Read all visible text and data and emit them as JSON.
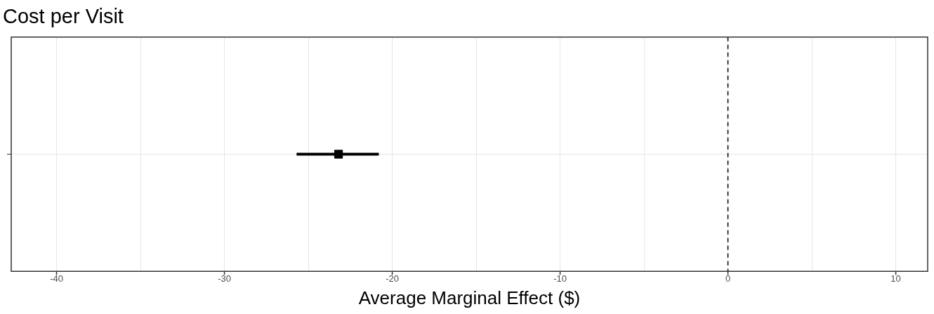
{
  "chart_data": {
    "type": "scatter",
    "title": "Cost per Visit",
    "xlabel": "Average Marginal Effect ($)",
    "orientation": "horizontal",
    "categories": [
      null
    ],
    "series": [
      {
        "color": "#000000",
        "values": [
          -23.2
        ],
        "errors": [
          [
            -25.7,
            -20.8
          ]
        ]
      }
    ],
    "xlim": [
      -42.7,
      11.9
    ],
    "xticks": [
      -40,
      {
        "value": -35,
        "label": null
      },
      -30,
      {
        "value": -25,
        "label": null
      },
      -20,
      {
        "value": -15,
        "label": null
      },
      -10,
      {
        "value": -5,
        "label": null
      },
      0,
      {
        "value": 5,
        "label": null
      },
      10
    ],
    "ref_lines": [
      {
        "axis": "x",
        "value": 0,
        "color": "#000000",
        "line_style": "dashed"
      }
    ],
    "grid": true,
    "legend": false,
    "marker": "square"
  }
}
